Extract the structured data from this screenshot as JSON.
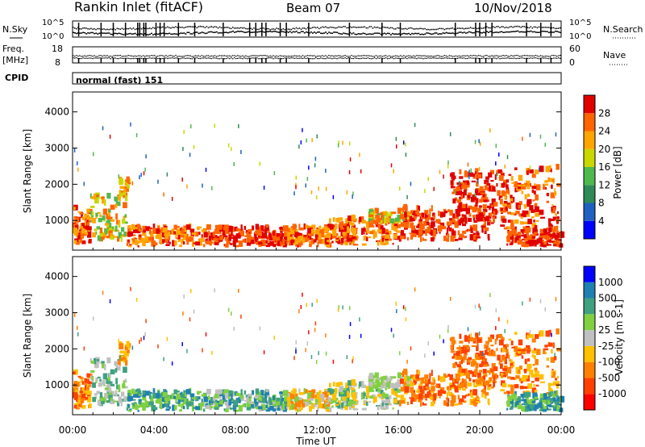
{
  "header": {
    "station": "Rankin Inlet (fitACF)",
    "beam": "Beam 07",
    "date": "10/Nov/2018"
  },
  "noise_panel": {
    "left_label": "N.Sky",
    "right_label": "N.Search",
    "top_tick": "10^5",
    "bottom_tick": "10^0"
  },
  "freq_panel": {
    "left_label_1": "Freq.",
    "left_label_2": "[MHz]",
    "left_ticks": [
      "18",
      "8"
    ],
    "right_label": "Nave",
    "right_ticks": [
      "60",
      "0"
    ]
  },
  "cpid_panel": {
    "label": "CPID",
    "text": "normal (fast) 151"
  },
  "colors": {
    "power": [
      "#0000ff",
      "#2060c0",
      "#2e8b57",
      "#4fb84f",
      "#c8d800",
      "#ffa500",
      "#ff6400",
      "#e00000"
    ],
    "velocity": [
      "#ff0000",
      "#ff4000",
      "#ff8000",
      "#ffc000",
      "#c0c0c0",
      "#80d040",
      "#40a080",
      "#2080b0",
      "#0000ff"
    ]
  },
  "chart_data": [
    {
      "type": "heatmap",
      "parameter": "power",
      "ylabel": "Slant Range [km]",
      "ylim": [
        180,
        4550
      ],
      "yticks": [
        1000,
        2000,
        3000,
        4000
      ],
      "xlim_hours": [
        0,
        24
      ],
      "x_tick_labels": [
        "00:00",
        "04:00",
        "08:00",
        "12:00",
        "16:00",
        "20:00",
        "00:00"
      ],
      "colorbar": {
        "label": "Power [dB]",
        "range": [
          0,
          32
        ],
        "ticks": [
          4,
          8,
          12,
          16,
          20,
          24,
          28
        ]
      }
    },
    {
      "type": "heatmap",
      "parameter": "velocity",
      "ylabel": "Slant Range [km]",
      "ylim": [
        180,
        4550
      ],
      "yticks": [
        1000,
        2000,
        3000,
        4000
      ],
      "xlim_hours": [
        0,
        24
      ],
      "x_tick_labels": [
        "00:00",
        "04:00",
        "08:00",
        "12:00",
        "16:00",
        "20:00",
        "00:00"
      ],
      "xlabel": "Time UT",
      "colorbar": {
        "label": "Velocity [m s-1]",
        "tick_labels": [
          "1000",
          "500",
          "100",
          "25",
          "-25",
          "-100",
          "-500",
          "-1000"
        ]
      }
    }
  ]
}
